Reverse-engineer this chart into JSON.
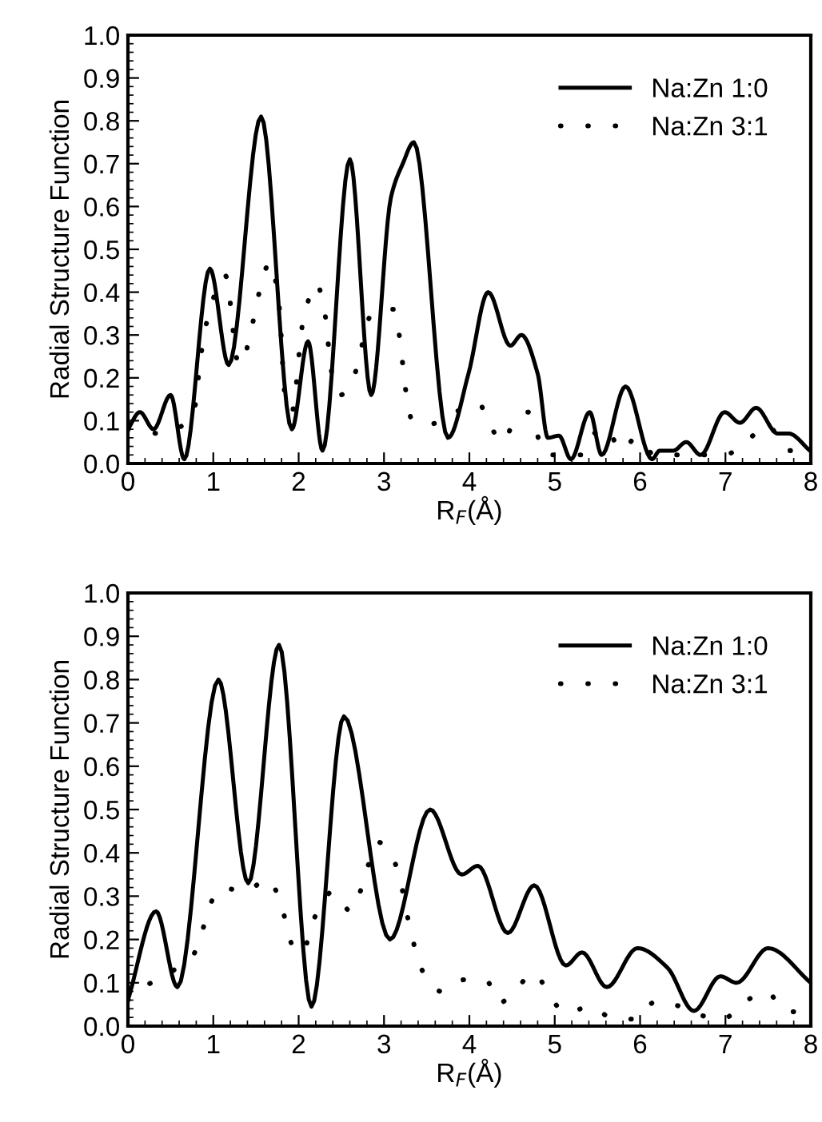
{
  "chart_data": [
    {
      "type": "line",
      "xlabel": "R$_{F}$(Å)",
      "ylabel": "Radial Structure Function",
      "xlim": [
        0,
        8
      ],
      "ylim": [
        0,
        1
      ],
      "xticks": [
        0,
        1,
        2,
        3,
        4,
        5,
        6,
        7,
        8
      ],
      "yticks": [
        {
          "value": 0,
          "label": "0.0"
        },
        {
          "value": 0.1,
          "label": "0.1"
        },
        {
          "value": 0.2,
          "label": "0.2"
        },
        {
          "value": 0.3,
          "label": "0.3"
        },
        {
          "value": 0.4,
          "label": "0.4"
        },
        {
          "value": 0.5,
          "label": "0.5"
        },
        {
          "value": 0.6,
          "label": "0.6"
        },
        {
          "value": 0.7,
          "label": "0.7"
        },
        {
          "value": 0.8,
          "label": "0.8"
        },
        {
          "value": 0.9,
          "label": "0.9"
        },
        {
          "value": 1,
          "label": "1.0"
        }
      ],
      "legend": "top right",
      "grid": false,
      "series": [
        {
          "name": "Na:Zn 1:0",
          "color": "#000000",
          "line_style": "solid",
          "x": [
            0,
            0.14,
            0.3,
            0.5,
            0.66,
            0.96,
            1.18,
            1.56,
            1.92,
            2.11,
            2.28,
            2.6,
            2.85,
            3.08,
            3.22,
            3.35,
            3.75,
            3.99,
            4.22,
            4.48,
            4.61,
            4.8,
            4.92,
            5.05,
            5.19,
            5.41,
            5.55,
            5.83,
            6.14,
            6.23,
            6.39,
            6.54,
            6.71,
            6.99,
            7.17,
            7.36,
            7.61,
            7.74,
            7.99
          ],
          "values": [
            0.08,
            0.12,
            0.08,
            0.16,
            0.01,
            0.455,
            0.23,
            0.81,
            0.08,
            0.285,
            0.03,
            0.71,
            0.16,
            0.62,
            0.7,
            0.75,
            0.06,
            0.21,
            0.4,
            0.275,
            0.3,
            0.21,
            0.06,
            0.065,
            0.01,
            0.12,
            0.02,
            0.18,
            0.01,
            0.03,
            0.03,
            0.05,
            0.02,
            0.12,
            0.095,
            0.13,
            0.07,
            0.07,
            0.03
          ]
        },
        {
          "name": "Na:Zn 3:1",
          "color": "#000000",
          "line_style": "dotted",
          "x": [
            0,
            0.39,
            0.76,
            0.86,
            0.96,
            1.14,
            1.3,
            1.67,
            1.77,
            1.84,
            1.92,
            2.05,
            2.21,
            2.3,
            2.39,
            2.49,
            2.64,
            2.86,
            3.11,
            3.17,
            3.27,
            3.33,
            3.49,
            4.11,
            4.24,
            4.39,
            4.52,
            4.69,
            4.79,
            4.89,
            5.31,
            5.43,
            5.61,
            5.77,
            5.96,
            6.17,
            6.46,
            6.99,
            7.24,
            7.49,
            7.74,
            7.99
          ],
          "values": [
            0.08,
            0.07,
            0.11,
            0.26,
            0.36,
            0.44,
            0.23,
            0.47,
            0.37,
            0.16,
            0.12,
            0.33,
            0.42,
            0.36,
            0.21,
            0.16,
            0.2,
            0.35,
            0.36,
            0.31,
            0.15,
            0.1,
            0.09,
            0.14,
            0.09,
            0.05,
            0.095,
            0.12,
            0.07,
            0.02,
            0.02,
            0.065,
            0.083,
            0.03,
            0.06,
            0.02,
            0.02,
            0.02,
            0.05,
            0.09,
            0.03,
            0.03
          ]
        }
      ]
    },
    {
      "type": "line",
      "xlabel": "R$_{F}$(Å)",
      "ylabel": "Radial Structure Function",
      "xlim": [
        0,
        8
      ],
      "ylim": [
        0,
        1
      ],
      "xticks": [
        0,
        1,
        2,
        3,
        4,
        5,
        6,
        7,
        8
      ],
      "yticks": [
        {
          "value": 0,
          "label": "0.0"
        },
        {
          "value": 0.1,
          "label": "0.1"
        },
        {
          "value": 0.2,
          "label": "0.2"
        },
        {
          "value": 0.3,
          "label": "0.3"
        },
        {
          "value": 0.4,
          "label": "0.4"
        },
        {
          "value": 0.5,
          "label": "0.5"
        },
        {
          "value": 0.6,
          "label": "0.6"
        },
        {
          "value": 0.7,
          "label": "0.7"
        },
        {
          "value": 0.8,
          "label": "0.8"
        },
        {
          "value": 0.9,
          "label": "0.9"
        },
        {
          "value": 1,
          "label": "1.0"
        }
      ],
      "legend": "top right",
      "grid": false,
      "series": [
        {
          "name": "Na:Zn 1:0",
          "color": "#000000",
          "line_style": "solid",
          "x": [
            0,
            0.33,
            0.58,
            1.06,
            1.41,
            1.77,
            2.15,
            2.53,
            3.07,
            3.54,
            3.91,
            4.1,
            4.45,
            4.76,
            5.13,
            5.32,
            5.61,
            5.97,
            6.32,
            6.63,
            6.94,
            7.13,
            7.5,
            8.0
          ],
          "values": [
            0.06,
            0.265,
            0.09,
            0.8,
            0.33,
            0.88,
            0.045,
            0.715,
            0.2,
            0.5,
            0.35,
            0.37,
            0.215,
            0.325,
            0.14,
            0.17,
            0.09,
            0.18,
            0.135,
            0.035,
            0.115,
            0.1,
            0.18,
            0.1
          ]
        },
        {
          "name": "Na:Zn 3:1",
          "color": "#000000",
          "line_style": "dotted",
          "x": [
            0,
            0.27,
            0.75,
            0.86,
            0.94,
            1.1,
            1.37,
            1.64,
            1.78,
            1.85,
            1.93,
            2.06,
            2.14,
            2.4,
            2.61,
            2.73,
            2.93,
            3.1,
            3.19,
            3.3,
            3.37,
            3.47,
            3.67,
            3.93,
            4.2,
            4.35,
            4.54,
            4.76,
            4.94,
            5.13,
            5.41,
            5.68,
            5.94,
            6.19,
            6.96,
            7.22,
            7.48,
            7.71,
            7.91
          ],
          "values": [
            0.06,
            0.1,
            0.16,
            0.21,
            0.27,
            0.32,
            0.31,
            0.34,
            0.29,
            0.24,
            0.185,
            0.17,
            0.23,
            0.31,
            0.265,
            0.315,
            0.425,
            0.39,
            0.335,
            0.23,
            0.175,
            0.12,
            0.08,
            0.107,
            0.105,
            0.053,
            0.084,
            0.123,
            0.07,
            0.03,
            0.045,
            0.018,
            0.016,
            0.058,
            0.015,
            0.055,
            0.08,
            0.033,
            0.033
          ]
        }
      ]
    }
  ]
}
